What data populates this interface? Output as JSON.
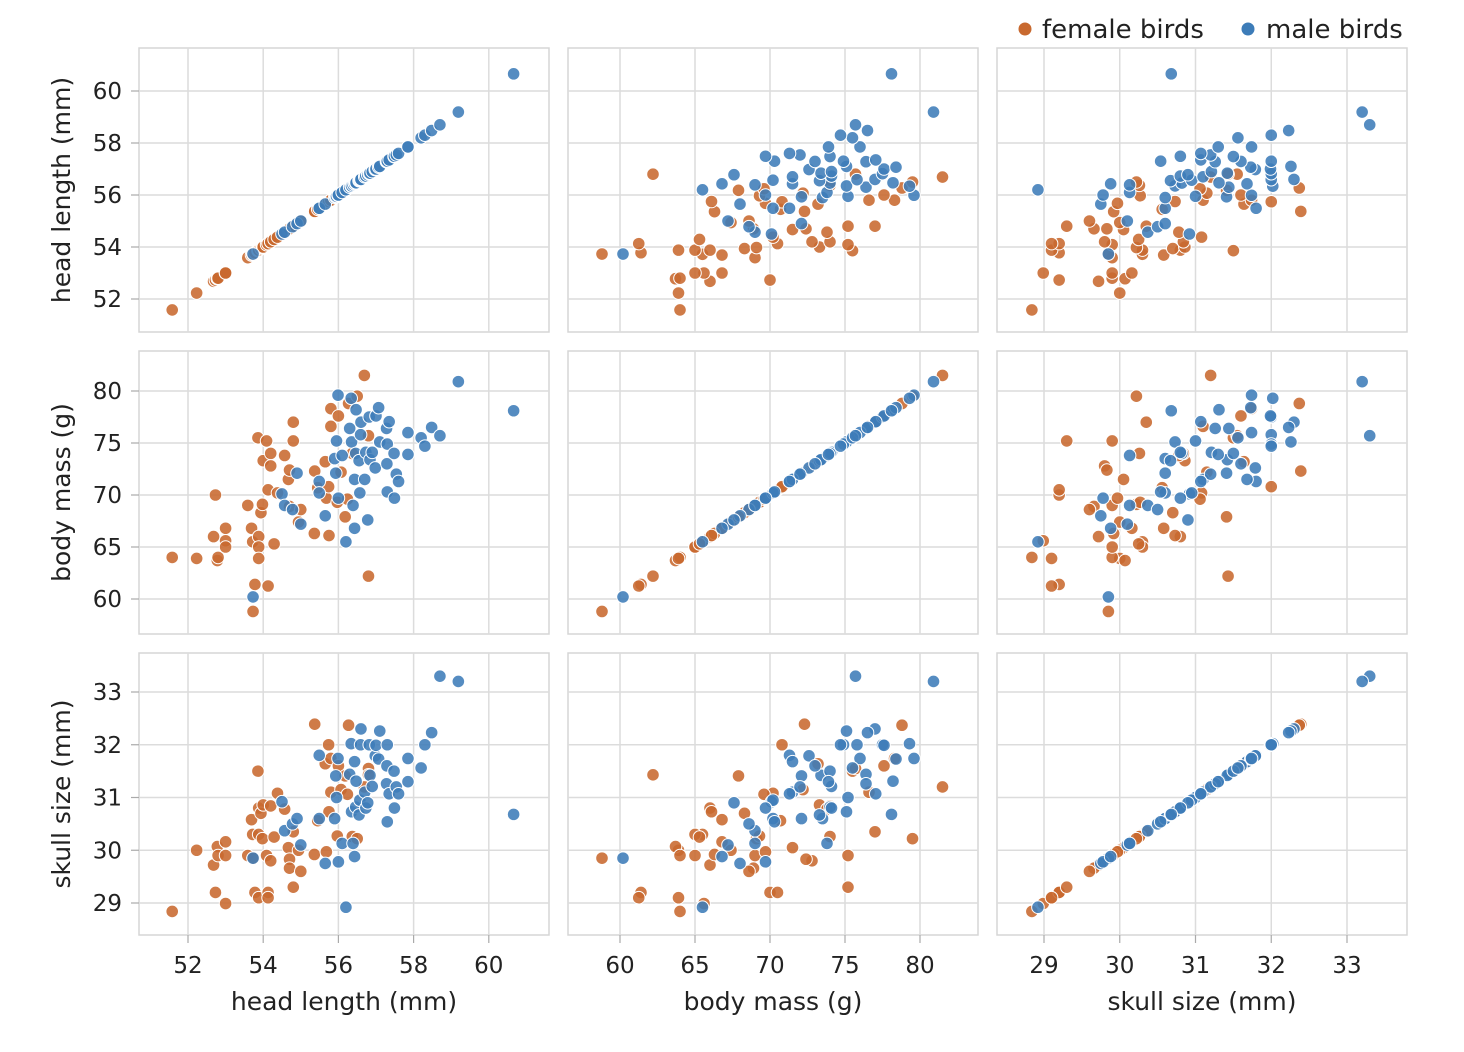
{
  "chart_data": {
    "type": "scatter",
    "layout": "scatterplot-matrix",
    "grid": true,
    "legend_position": "top-right",
    "variables": [
      {
        "key": "head",
        "label": "head length (mm)",
        "ticks": [
          52,
          54,
          56,
          58,
          60
        ]
      },
      {
        "key": "mass",
        "label": "body mass (g)",
        "ticks": [
          60,
          65,
          70,
          75,
          80
        ]
      },
      {
        "key": "skull",
        "label": "skull size (mm)",
        "ticks": [
          29,
          30,
          31,
          32,
          33
        ]
      }
    ],
    "point_fields": [
      "head",
      "mass",
      "skull"
    ],
    "series": [
      {
        "name": "female birds",
        "color": "#C8692F",
        "points": [
          [
            51.58,
            64.0,
            28.84
          ],
          [
            52.23,
            63.9,
            30.0
          ],
          [
            52.68,
            66.0,
            29.72
          ],
          [
            52.73,
            70.0,
            29.2
          ],
          [
            52.78,
            63.7,
            30.07
          ],
          [
            52.8,
            64.0,
            29.9
          ],
          [
            53.0,
            66.8,
            30.16
          ],
          [
            53.0,
            65.6,
            28.99
          ],
          [
            53.0,
            65.0,
            29.9
          ],
          [
            53.59,
            69.0,
            29.9
          ],
          [
            53.69,
            66.8,
            30.58
          ],
          [
            53.72,
            65.5,
            30.3
          ],
          [
            53.73,
            58.8,
            29.85
          ],
          [
            53.78,
            61.4,
            29.2
          ],
          [
            53.86,
            75.5,
            31.5
          ],
          [
            53.88,
            66.0,
            30.8
          ],
          [
            53.88,
            65.0,
            30.3
          ],
          [
            53.88,
            63.9,
            29.1
          ],
          [
            53.94,
            68.3,
            30.7
          ],
          [
            53.98,
            69.1,
            30.22
          ],
          [
            54.0,
            73.3,
            30.86
          ],
          [
            54.09,
            75.2,
            29.9
          ],
          [
            54.13,
            70.5,
            29.2
          ],
          [
            54.13,
            61.25,
            29.1
          ],
          [
            54.2,
            74.0,
            30.84
          ],
          [
            54.2,
            72.8,
            29.8
          ],
          [
            54.29,
            65.3,
            30.25
          ],
          [
            54.38,
            70.2,
            31.08
          ],
          [
            54.57,
            73.8,
            30.78
          ],
          [
            54.67,
            71.5,
            30.05
          ],
          [
            54.7,
            72.4,
            29.83
          ],
          [
            54.7,
            68.9,
            29.66
          ],
          [
            54.8,
            77.0,
            30.35
          ],
          [
            54.8,
            75.2,
            29.3
          ],
          [
            54.94,
            67.4,
            30.0
          ],
          [
            55.0,
            68.6,
            29.6
          ],
          [
            55.36,
            66.3,
            29.92
          ],
          [
            55.37,
            72.3,
            32.39
          ],
          [
            55.45,
            70.7,
            30.56
          ],
          [
            55.65,
            73.2,
            31.64
          ],
          [
            55.68,
            69.7,
            29.97
          ],
          [
            55.74,
            70.8,
            32.0
          ],
          [
            55.75,
            66.1,
            30.73
          ],
          [
            55.8,
            78.3,
            31.74
          ],
          [
            55.8,
            76.6,
            31.1
          ],
          [
            55.97,
            69.3,
            30.27
          ],
          [
            56.0,
            77.6,
            31.6
          ],
          [
            56.07,
            72.2,
            31.15
          ],
          [
            56.18,
            67.9,
            31.41
          ],
          [
            56.24,
            69.6,
            31.06
          ],
          [
            56.27,
            78.8,
            32.37
          ],
          [
            56.37,
            74.0,
            30.26
          ],
          [
            56.5,
            79.5,
            30.22
          ],
          [
            56.69,
            81.5,
            31.2
          ],
          [
            56.8,
            75.7,
            31.55
          ],
          [
            56.8,
            62.2,
            31.43
          ]
        ]
      },
      {
        "name": "male birds",
        "color": "#3D7CB8",
        "points": [
          [
            53.73,
            60.2,
            29.85
          ],
          [
            54.5,
            70.1,
            30.92
          ],
          [
            54.57,
            69.0,
            30.37
          ],
          [
            54.78,
            68.6,
            30.5
          ],
          [
            54.9,
            72.1,
            30.6
          ],
          [
            55.0,
            67.2,
            30.1
          ],
          [
            55.49,
            71.3,
            31.8
          ],
          [
            55.49,
            70.2,
            30.6
          ],
          [
            55.65,
            68.0,
            29.75
          ],
          [
            55.9,
            73.5,
            30.6
          ],
          [
            55.93,
            72.1,
            31.41
          ],
          [
            55.95,
            75.2,
            31.0
          ],
          [
            55.99,
            79.6,
            31.74
          ],
          [
            56.0,
            69.7,
            29.78
          ],
          [
            56.1,
            73.8,
            30.13
          ],
          [
            56.2,
            65.5,
            28.92
          ],
          [
            56.3,
            76.4,
            31.44
          ],
          [
            56.34,
            79.3,
            32.02
          ],
          [
            56.35,
            75.1,
            30.73
          ],
          [
            56.39,
            69.0,
            30.13
          ],
          [
            56.43,
            71.5,
            31.68
          ],
          [
            56.43,
            66.8,
            29.88
          ],
          [
            56.46,
            74.0,
            30.82
          ],
          [
            56.47,
            78.2,
            31.31
          ],
          [
            56.55,
            73.3,
            30.67
          ],
          [
            56.57,
            70.2,
            30.95
          ],
          [
            56.59,
            75.8,
            32.0
          ],
          [
            56.6,
            77.0,
            32.3
          ],
          [
            56.7,
            71.5,
            31.1
          ],
          [
            56.73,
            74.1,
            30.8
          ],
          [
            56.78,
            67.6,
            30.9
          ],
          [
            56.82,
            77.5,
            32.0
          ],
          [
            56.84,
            73.4,
            31.42
          ],
          [
            56.9,
            74.1,
            31.21
          ],
          [
            56.98,
            72.6,
            31.79
          ],
          [
            57.0,
            77.6,
            31.99
          ],
          [
            57.07,
            78.4,
            31.73
          ],
          [
            57.1,
            75.1,
            32.26
          ],
          [
            57.28,
            76.4,
            31.26
          ],
          [
            57.29,
            73.0,
            31.6
          ],
          [
            57.3,
            74.9,
            32.0
          ],
          [
            57.3,
            70.3,
            30.54
          ],
          [
            57.35,
            77.05,
            31.07
          ],
          [
            57.48,
            74.0,
            31.5
          ],
          [
            57.49,
            69.7,
            30.8
          ],
          [
            57.54,
            72.0,
            31.2
          ],
          [
            57.6,
            71.3,
            31.07
          ],
          [
            57.85,
            76.0,
            31.74
          ],
          [
            57.85,
            73.9,
            31.3
          ],
          [
            58.2,
            75.5,
            31.56
          ],
          [
            58.3,
            74.7,
            32.0
          ],
          [
            58.48,
            76.5,
            32.23
          ],
          [
            58.7,
            75.7,
            33.3
          ],
          [
            59.19,
            80.9,
            33.2
          ],
          [
            60.66,
            78.1,
            30.68
          ]
        ]
      }
    ]
  }
}
